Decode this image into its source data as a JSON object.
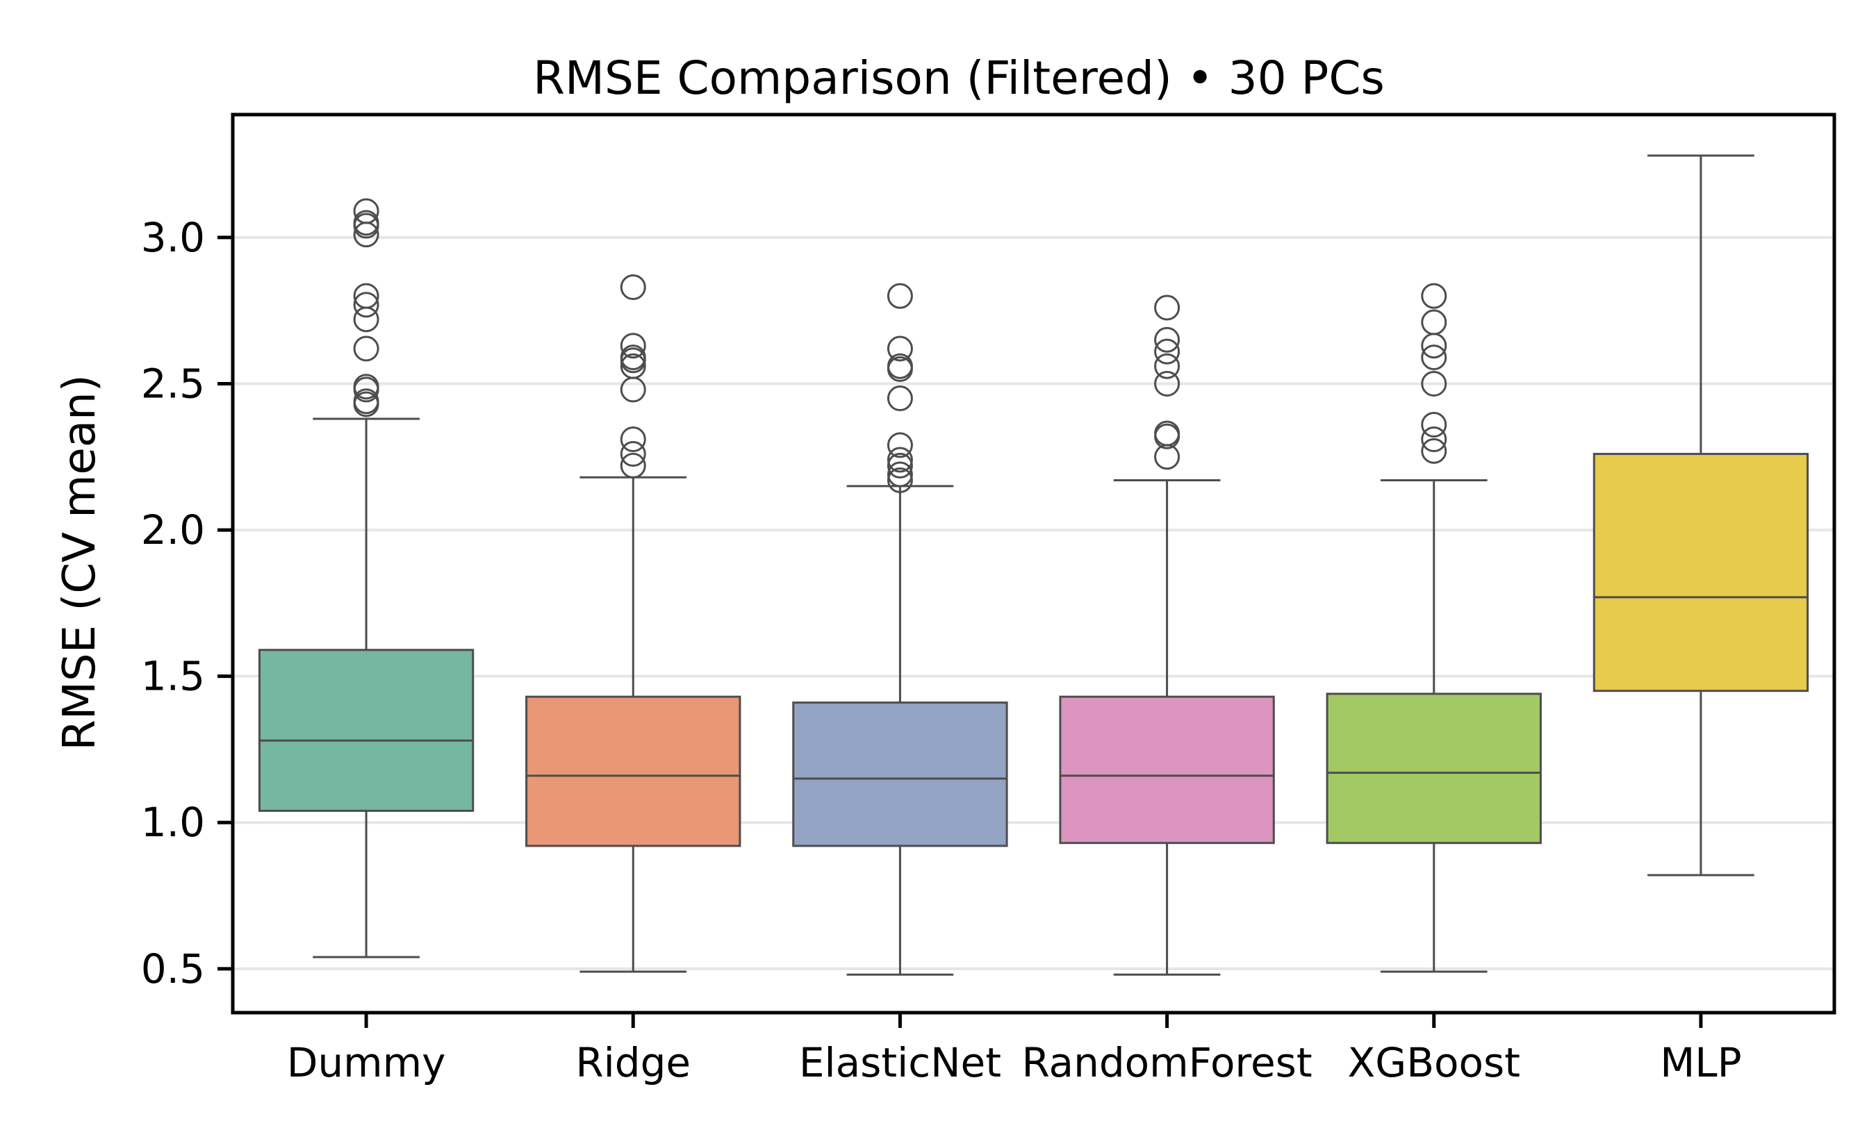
{
  "chart_data": {
    "type": "box",
    "title": "RMSE Comparison (Filtered) • 30 PCs",
    "xlabel": "",
    "ylabel": "RMSE (CV mean)",
    "ylim": [
      0.35,
      3.42
    ],
    "yticks": [
      0.5,
      1.0,
      1.5,
      2.0,
      2.5,
      3.0
    ],
    "ytick_labels": [
      "0.5",
      "1.0",
      "1.5",
      "2.0",
      "2.5",
      "3.0"
    ],
    "grid": "horizontal",
    "categories": [
      "Dummy",
      "Ridge",
      "ElasticNet",
      "RandomForest",
      "XGBoost",
      "MLP"
    ],
    "boxes": [
      {
        "category": "Dummy",
        "whisker_low": 0.54,
        "q1": 1.04,
        "median": 1.28,
        "q3": 1.59,
        "whisker_high": 2.38,
        "outliers": [
          2.43,
          2.44,
          2.48,
          2.49,
          2.62,
          2.72,
          2.77,
          2.8,
          3.01,
          3.04,
          3.05,
          3.09
        ]
      },
      {
        "category": "Ridge",
        "whisker_low": 0.49,
        "q1": 0.92,
        "median": 1.16,
        "q3": 1.43,
        "whisker_high": 2.18,
        "outliers": [
          2.22,
          2.26,
          2.31,
          2.48,
          2.56,
          2.58,
          2.59,
          2.63,
          2.83
        ]
      },
      {
        "category": "ElasticNet",
        "whisker_low": 0.48,
        "q1": 0.92,
        "median": 1.15,
        "q3": 1.41,
        "whisker_high": 2.15,
        "outliers": [
          2.17,
          2.19,
          2.22,
          2.24,
          2.29,
          2.45,
          2.55,
          2.56,
          2.62,
          2.8
        ]
      },
      {
        "category": "RandomForest",
        "whisker_low": 0.48,
        "q1": 0.93,
        "median": 1.16,
        "q3": 1.43,
        "whisker_high": 2.17,
        "outliers": [
          2.25,
          2.32,
          2.33,
          2.5,
          2.56,
          2.61,
          2.65,
          2.76
        ]
      },
      {
        "category": "XGBoost",
        "whisker_low": 0.49,
        "q1": 0.93,
        "median": 1.17,
        "q3": 1.44,
        "whisker_high": 2.17,
        "outliers": [
          2.27,
          2.31,
          2.36,
          2.5,
          2.59,
          2.63,
          2.71,
          2.8
        ]
      },
      {
        "category": "MLP",
        "whisker_low": 0.82,
        "q1": 1.45,
        "median": 1.77,
        "q3": 2.26,
        "whisker_high": 3.28,
        "outliers": []
      }
    ],
    "colors": [
      "#76b7a1",
      "#e99774",
      "#93a3c4",
      "#dc95c0",
      "#a3c965",
      "#e6cb4c"
    ],
    "line_color": "#4d4d4d",
    "grid_color": "#e6e6e6"
  }
}
